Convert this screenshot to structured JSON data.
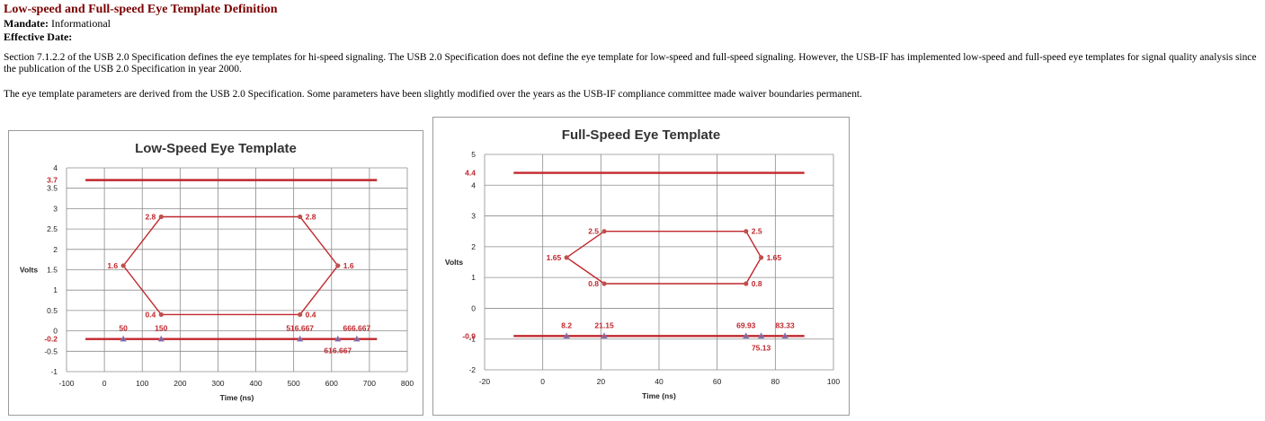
{
  "doc": {
    "title": "Low-speed and Full-speed Eye Template Definition",
    "mandate_label": "Mandate:",
    "mandate_value": "Informational",
    "effective_label": "Effective Date:",
    "effective_value": "",
    "paragraph1": "Section 7.1.2.2 of the USB 2.0 Specification defines the eye templates for hi-speed signaling. The USB 2.0 Specification does not define the eye template for low-speed and full-speed signaling. However, the USB-IF has implemented low-speed and full-speed eye templates for signal quality analysis since the publication of the USB 2.0 Specification in year 2000.",
    "paragraph2": "The eye template parameters are derived from the USB 2.0 Specification. Some parameters have been slightly modified over the years as the USB-IF compliance committee made waiver boundaries permanent."
  },
  "chart_data": [
    {
      "type": "line",
      "title": "Low-Speed Eye Template",
      "xlabel": "Time (ns)",
      "ylabel": "Volts",
      "xlim": [
        -100,
        800
      ],
      "ylim": [
        -1,
        4
      ],
      "x_ticks": [
        -100,
        0,
        100,
        200,
        300,
        400,
        500,
        600,
        700,
        800
      ],
      "y_ticks": [
        -1,
        -0.5,
        0,
        0.5,
        1,
        1.5,
        2,
        2.5,
        3,
        3.5,
        4
      ],
      "grid": true,
      "colors": {
        "line": "#c0272d",
        "marker": "#c0504d",
        "label": "#c0272d",
        "triangle": "#8064a2"
      },
      "upper_limit": {
        "y": 3.7,
        "x_range": [
          -50,
          720
        ],
        "label": "3.7"
      },
      "lower_limit": {
        "y": -0.2,
        "x_range": [
          -50,
          720
        ],
        "label": "-0.2"
      },
      "eye": [
        [
          50,
          1.6
        ],
        [
          150,
          2.8
        ],
        [
          516.667,
          2.8
        ],
        [
          616.667,
          1.6
        ],
        [
          516.667,
          0.4
        ],
        [
          150,
          0.4
        ],
        [
          50,
          1.6
        ]
      ],
      "point_labels": [
        {
          "x": 150,
          "y": 2.8,
          "text": "2.8",
          "pos": "left"
        },
        {
          "x": 516.667,
          "y": 2.8,
          "text": "2.8",
          "pos": "right"
        },
        {
          "x": 50,
          "y": 1.6,
          "text": "1.6",
          "pos": "left"
        },
        {
          "x": 616.667,
          "y": 1.6,
          "text": "1.6",
          "pos": "right"
        },
        {
          "x": 150,
          "y": 0.4,
          "text": "0.4",
          "pos": "left"
        },
        {
          "x": 516.667,
          "y": 0.4,
          "text": "0.4",
          "pos": "right"
        }
      ],
      "time_markers": [
        {
          "x": 50,
          "text": "50",
          "pos": "above"
        },
        {
          "x": 150,
          "text": "150",
          "pos": "above"
        },
        {
          "x": 516.667,
          "text": "516.667",
          "pos": "above"
        },
        {
          "x": 616.667,
          "text": "616.667",
          "pos": "below"
        },
        {
          "x": 666.667,
          "text": "666.667",
          "pos": "above"
        }
      ]
    },
    {
      "type": "line",
      "title": "Full-Speed Eye Template",
      "xlabel": "Time (ns)",
      "ylabel": "Volts",
      "xlim": [
        -20,
        100
      ],
      "ylim": [
        -2,
        5
      ],
      "x_ticks": [
        -20,
        0,
        20,
        40,
        60,
        80,
        100
      ],
      "y_ticks": [
        -2,
        -1,
        0,
        1,
        2,
        3,
        4,
        5
      ],
      "grid": true,
      "colors": {
        "line": "#c0272d",
        "marker": "#c0504d",
        "label": "#c0272d",
        "triangle": "#8064a2"
      },
      "upper_limit": {
        "y": 4.4,
        "x_range": [
          -10,
          90
        ],
        "label": "4.4"
      },
      "lower_limit": {
        "y": -0.9,
        "x_range": [
          -10,
          90
        ],
        "label": "-0.9"
      },
      "eye": [
        [
          8.2,
          1.65
        ],
        [
          21.15,
          2.5
        ],
        [
          69.93,
          2.5
        ],
        [
          75.13,
          1.65
        ],
        [
          69.93,
          0.8
        ],
        [
          21.15,
          0.8
        ],
        [
          8.2,
          1.65
        ]
      ],
      "point_labels": [
        {
          "x": 21.15,
          "y": 2.5,
          "text": "2.5",
          "pos": "left"
        },
        {
          "x": 69.93,
          "y": 2.5,
          "text": "2.5",
          "pos": "right"
        },
        {
          "x": 8.2,
          "y": 1.65,
          "text": "1.65",
          "pos": "left"
        },
        {
          "x": 75.13,
          "y": 1.65,
          "text": "1.65",
          "pos": "right"
        },
        {
          "x": 21.15,
          "y": 0.8,
          "text": "0.8",
          "pos": "left"
        },
        {
          "x": 69.93,
          "y": 0.8,
          "text": "0.8",
          "pos": "right"
        }
      ],
      "time_markers": [
        {
          "x": 8.2,
          "text": "8.2",
          "pos": "above"
        },
        {
          "x": 21.15,
          "text": "21.15",
          "pos": "above"
        },
        {
          "x": 69.93,
          "text": "69.93",
          "pos": "above"
        },
        {
          "x": 75.13,
          "text": "75.13",
          "pos": "below"
        },
        {
          "x": 83.33,
          "text": "83.33",
          "pos": "above"
        }
      ]
    }
  ]
}
